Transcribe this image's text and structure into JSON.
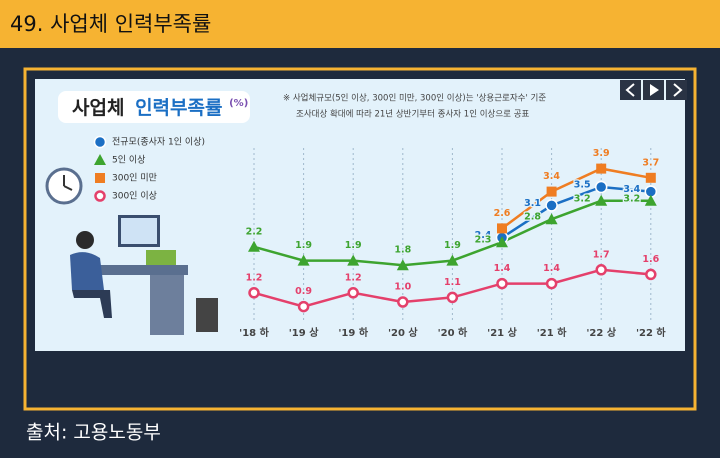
{
  "header": {
    "title": "49. 사업체 인력부족률"
  },
  "chart_data": {
    "type": "line",
    "title": {
      "main": "사업체",
      "highlight": "인력부족률",
      "unit": "(%)"
    },
    "note": [
      "※ 사업체규모(5인 이상, 300인 미만, 300인 이상)는 '상용근로자수' 기준",
      "조사대상 확대에 따라 21년 상반기부터 종사자 1인 이상으로 공표"
    ],
    "categories": [
      "'18 하",
      "'19 상",
      "'19 하",
      "'20 상",
      "'20 하",
      "'21 상",
      "'21 하",
      "'22 상",
      "'22 하"
    ],
    "series": [
      {
        "name": "전규모(종사자 1인 이상)",
        "color": "#1b6fc4",
        "marker": "circle",
        "values": [
          null,
          null,
          null,
          null,
          null,
          2.4,
          3.1,
          3.5,
          3.4
        ],
        "value_labels": [
          null,
          null,
          null,
          null,
          null,
          "2.4",
          "3.1",
          "3.5",
          "3.4"
        ]
      },
      {
        "name": "5인 이상",
        "color": "#3da42f",
        "marker": "triangle",
        "values": [
          2.2,
          1.9,
          1.9,
          1.8,
          1.9,
          2.3,
          2.8,
          3.2,
          3.2
        ],
        "value_labels": [
          "2.2",
          "1.9",
          "1.9",
          "1.8",
          "1.9",
          "2.3",
          "2.8",
          "3.2",
          "3.2"
        ]
      },
      {
        "name": "300인 미만",
        "color": "#ef7d22",
        "marker": "square",
        "values": [
          null,
          null,
          null,
          null,
          null,
          2.6,
          3.4,
          3.9,
          3.7
        ],
        "value_labels": [
          null,
          null,
          null,
          null,
          null,
          "2.6",
          "3.4",
          "3.9",
          "3.7"
        ]
      },
      {
        "name": "300인 이상",
        "color": "#e4406b",
        "marker": "ring",
        "values": [
          1.2,
          0.9,
          1.2,
          1.0,
          1.1,
          1.4,
          1.4,
          1.7,
          1.6
        ],
        "value_labels": [
          "1.2",
          "0.9",
          "1.2",
          "1.0",
          "1.1",
          "1.4",
          "1.4",
          "1.7",
          "1.6"
        ]
      }
    ],
    "grid": true
  },
  "source": "출처: 고용노동부"
}
